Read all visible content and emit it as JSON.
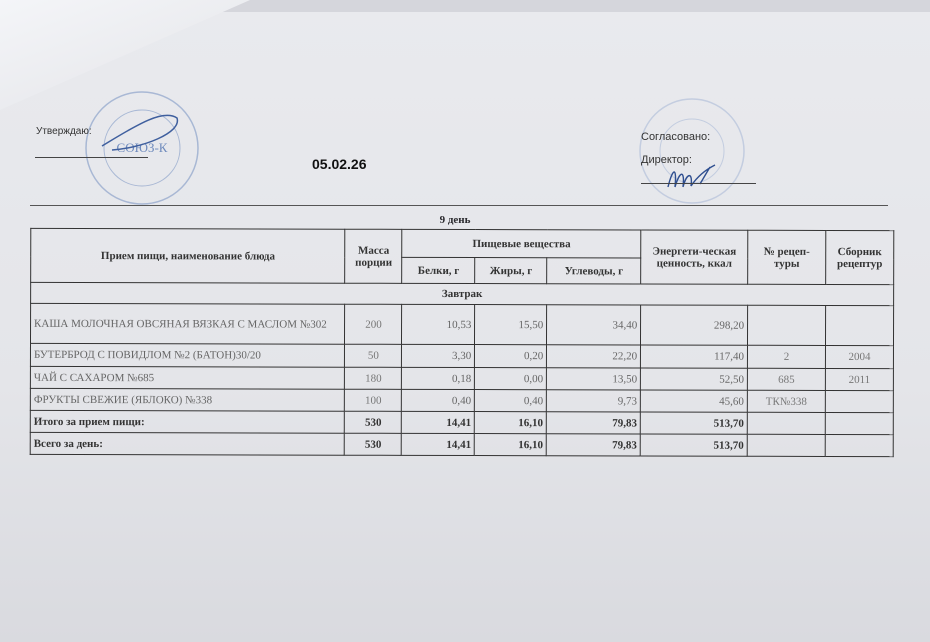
{
  "header": {
    "approved_label": "Утверждаю:",
    "agreed_label": "Согласовано:",
    "director_label": "Директор:",
    "date": "05.02.26",
    "stamp_left_text": "СОЮЗ-К",
    "stamp_colors": "#5b7fb8"
  },
  "day_title": "9 день",
  "table": {
    "headers": {
      "name": "Прием пищи, наименование блюда",
      "mass": "Масса порции",
      "nutrients": "Пищевые вещества",
      "protein": "Белки, г",
      "fat": "Жиры, г",
      "carbs": "Углеводы, г",
      "energy": "Энергети-ческая ценность, ккал",
      "recipe_no": "№ рецеп-туры",
      "collection": "Сборник рецептур"
    },
    "section": "Завтрак",
    "rows": [
      {
        "name": "КАША МОЛОЧНАЯ ОВСЯНАЯ ВЯЗКАЯ С МАСЛОМ №302",
        "mass": "200",
        "protein": "10,53",
        "fat": "15,50",
        "carbs": "34,40",
        "energy": "298,20",
        "recipe_no": "",
        "collection": ""
      },
      {
        "name": "БУТЕРБРОД С ПОВИДЛОМ №2 (БАТОН)30/20",
        "mass": "50",
        "protein": "3,30",
        "fat": "0,20",
        "carbs": "22,20",
        "energy": "117,40",
        "recipe_no": "2",
        "collection": "2004"
      },
      {
        "name": "ЧАЙ С САХАРОМ №685",
        "mass": "180",
        "protein": "0,18",
        "fat": "0,00",
        "carbs": "13,50",
        "energy": "52,50",
        "recipe_no": "685",
        "collection": "2011"
      },
      {
        "name": "ФРУКТЫ СВЕЖИЕ (ЯБЛОКО) №338",
        "mass": "100",
        "protein": "0,40",
        "fat": "0,40",
        "carbs": "9,73",
        "energy": "45,60",
        "recipe_no": "ТК№338",
        "collection": ""
      }
    ],
    "meal_total": {
      "name": "Итого за прием пищи:",
      "mass": "530",
      "protein": "14,41",
      "fat": "16,10",
      "carbs": "79,83",
      "energy": "513,70"
    },
    "day_total": {
      "name": "Всего за день:",
      "mass": "530",
      "protein": "14,41",
      "fat": "16,10",
      "carbs": "79,83",
      "energy": "513,70"
    }
  }
}
